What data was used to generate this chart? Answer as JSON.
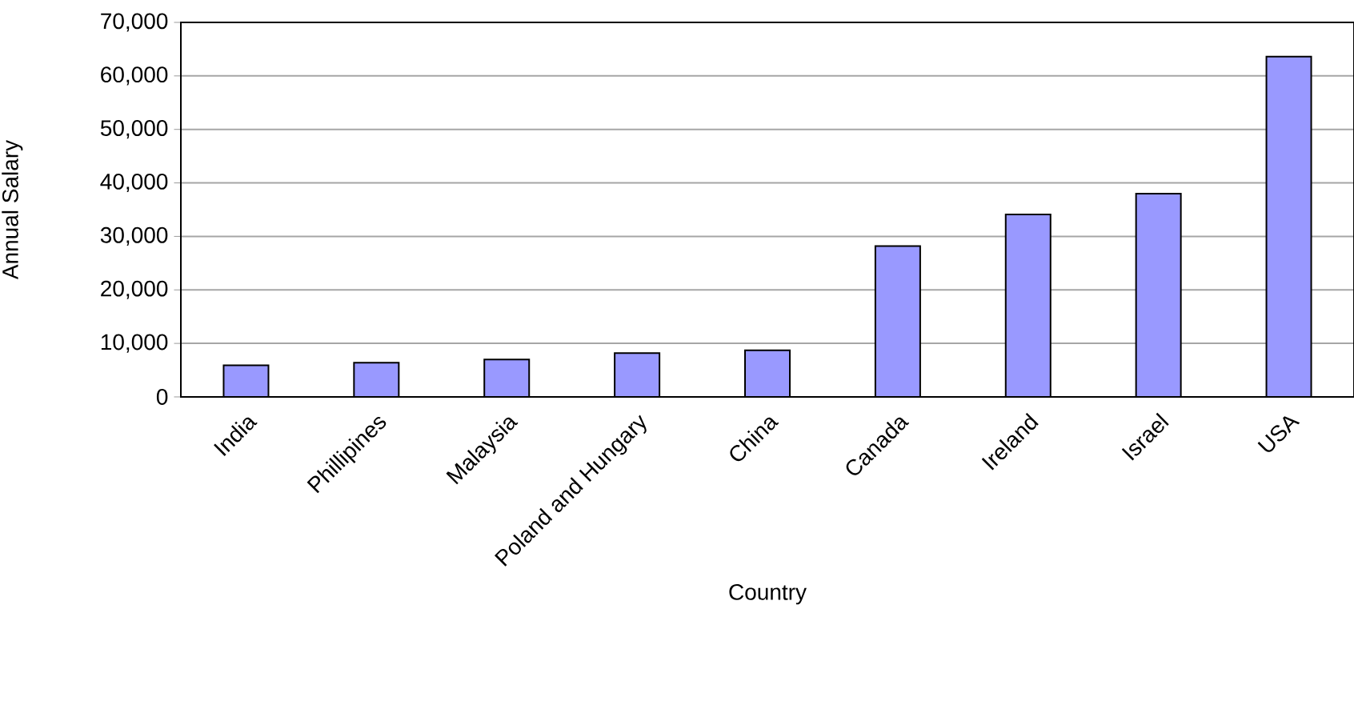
{
  "chart_data": {
    "type": "bar",
    "xlabel": "Country",
    "ylabel": "Annual Salary",
    "categories": [
      "India",
      "Phillipines",
      "Malaysia",
      "Poland and Hungary",
      "China",
      "Canada",
      "Ireland",
      "Israel",
      "USA"
    ],
    "values": [
      5900,
      6400,
      7000,
      8200,
      8700,
      28200,
      34100,
      38000,
      63600
    ],
    "color": "#9999ff",
    "ylim": [
      0,
      70000
    ],
    "yticks": [
      {
        "value": 0,
        "label": "0"
      },
      {
        "value": 10000,
        "label": "10,000"
      },
      {
        "value": 20000,
        "label": "20,000"
      },
      {
        "value": 30000,
        "label": "30,000"
      },
      {
        "value": 40000,
        "label": "40,000"
      },
      {
        "value": 50000,
        "label": "50,000"
      },
      {
        "value": 60000,
        "label": "60,000"
      },
      {
        "value": 70000,
        "label": "70,000"
      }
    ],
    "grid": "y"
  }
}
